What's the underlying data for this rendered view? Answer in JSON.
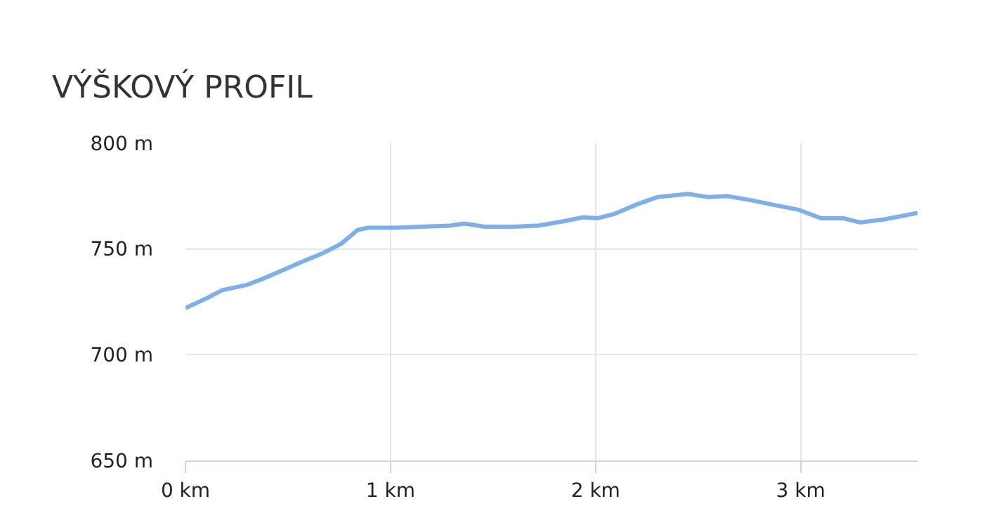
{
  "chart_data": {
    "type": "line",
    "title": "VÝŠKOVÝ PROFIL",
    "x": [
      0,
      0.11,
      0.18,
      0.3,
      0.38,
      0.5,
      0.57,
      0.67,
      0.76,
      0.84,
      0.89,
      1.02,
      1.15,
      1.29,
      1.36,
      1.46,
      1.6,
      1.72,
      1.84,
      1.94,
      2.01,
      2.09,
      2.2,
      2.3,
      2.45,
      2.55,
      2.64,
      2.76,
      2.86,
      2.99,
      3.1,
      3.21,
      3.29,
      3.41,
      3.57
    ],
    "series": [
      {
        "color": "#7cb0e8",
        "values": [
          722,
          727,
          730.5,
          733,
          736,
          741,
          744,
          748,
          752.5,
          759,
          760,
          760,
          760.5,
          761,
          762,
          760.5,
          760.5,
          761,
          763,
          765,
          764.5,
          766.5,
          771,
          774.5,
          776,
          774.5,
          775,
          773,
          771,
          768.5,
          764.5,
          764.5,
          762.5,
          764,
          767
        ]
      }
    ],
    "xlim": [
      0,
      3.57
    ],
    "ylim": [
      650,
      800
    ],
    "xticks": [
      {
        "value": 0,
        "label": "0 km"
      },
      {
        "value": 1,
        "label": "1 km"
      },
      {
        "value": 2,
        "label": "2 km"
      },
      {
        "value": 3,
        "label": "3 km"
      }
    ],
    "yticks": [
      {
        "value": 650,
        "label": "650 m"
      },
      {
        "value": 700,
        "label": "700 m"
      },
      {
        "value": 750,
        "label": "750 m"
      },
      {
        "value": 800,
        "label": "800 m"
      }
    ],
    "grid": true,
    "marker": "none",
    "line_style": "solid"
  }
}
